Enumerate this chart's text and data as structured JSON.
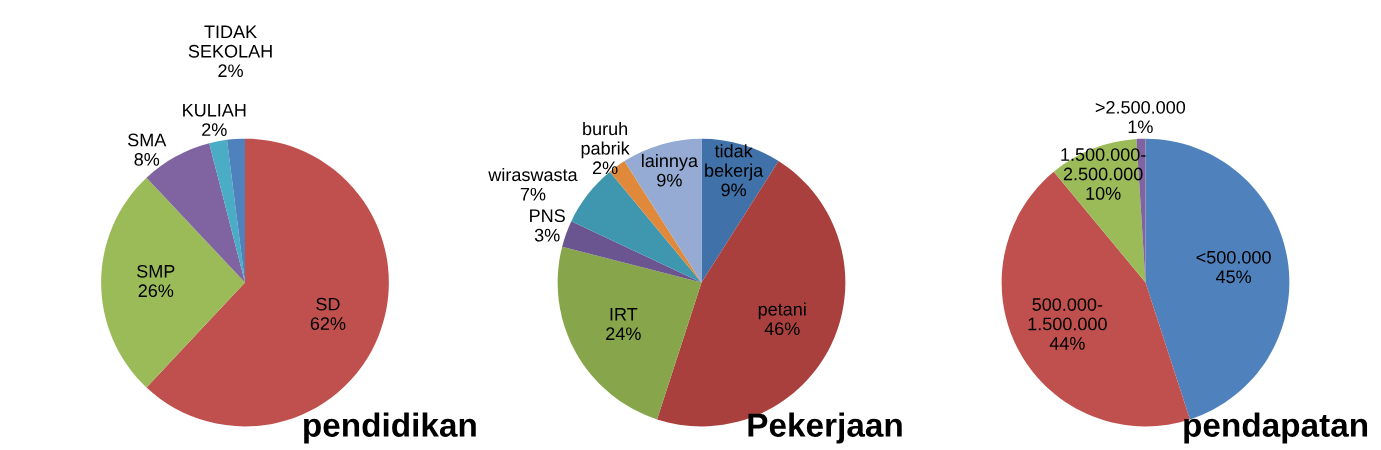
{
  "chart_data": [
    {
      "type": "pie",
      "title": "pendidikan",
      "data_labels": true,
      "categories": [
        "SD",
        "SMP",
        "SMA",
        "KULIAH",
        "TIDAK SEKOLAH"
      ],
      "values": [
        62,
        26,
        8,
        2,
        2
      ],
      "value_labels": [
        "62%",
        "26%",
        "8%",
        "2%",
        "2%"
      ],
      "colors": [
        "#c0504d",
        "#9bbb59",
        "#8064a2",
        "#4bacc6",
        "#4f81bd"
      ]
    },
    {
      "type": "pie",
      "title": "Pekerjaan",
      "data_labels": true,
      "categories": [
        "tidak bekerja",
        "petani",
        "IRT",
        "PNS",
        "wiraswasta",
        "buruh pabrik",
        "lainnya"
      ],
      "values": [
        9,
        46,
        24,
        3,
        7,
        2,
        9
      ],
      "value_labels": [
        "9%",
        "46%",
        "24%",
        "3%",
        "7%",
        "2%",
        "9%"
      ],
      "colors": [
        "#4071a8",
        "#a9403d",
        "#87a64b",
        "#6a5590",
        "#3e97ae",
        "#e0893a",
        "#95abd4"
      ]
    },
    {
      "type": "pie",
      "title": "pendapatan",
      "data_labels": true,
      "categories": [
        "<500.000",
        "500.000-1.500.000",
        "1.500.000-2.500.000",
        ">2.500.000"
      ],
      "values": [
        45,
        44,
        10,
        1
      ],
      "value_labels": [
        "45%",
        "44%",
        "10%",
        "1%"
      ],
      "colors": [
        "#4f81bd",
        "#c0504d",
        "#9bbb59",
        "#8064a2"
      ]
    }
  ]
}
